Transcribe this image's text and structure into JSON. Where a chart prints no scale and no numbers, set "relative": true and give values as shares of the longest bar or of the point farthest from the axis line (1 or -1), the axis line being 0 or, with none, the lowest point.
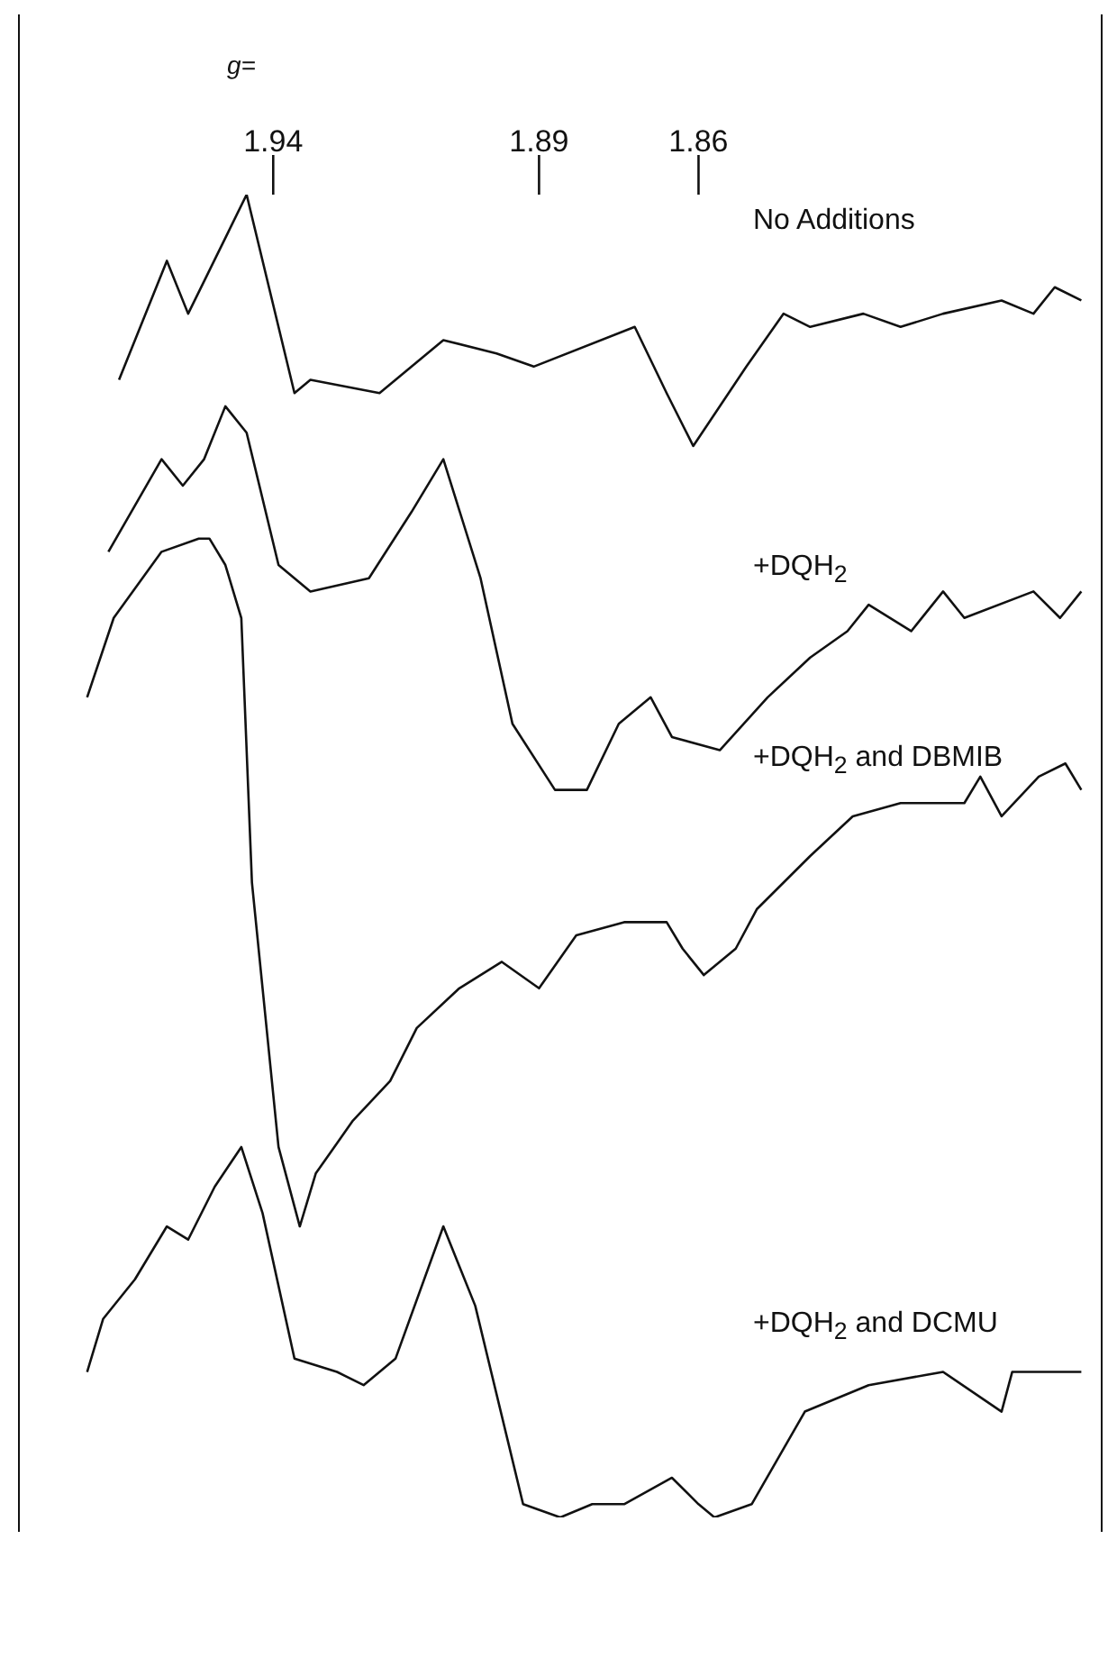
{
  "chart_data": {
    "type": "line",
    "relative": true,
    "xlabel": "g=",
    "xlim": [
      1.988,
      1.784
    ],
    "xticks": [
      1.94,
      1.89,
      1.86
    ],
    "grid": false,
    "marker": "none",
    "line_style": "solid",
    "series": [
      {
        "name": "No Additions",
        "color": "#111111",
        "x": [
          1.969,
          1.96,
          1.956,
          1.945,
          1.936,
          1.933,
          1.92,
          1.908,
          1.898,
          1.891,
          1.872,
          1.866,
          1.861,
          1.851,
          1.844,
          1.839,
          1.829,
          1.822,
          1.814,
          1.803,
          1.797,
          1.793,
          1.788
        ],
        "values": [
          0.86,
          0.95,
          0.91,
          1.0,
          0.85,
          0.86,
          0.85,
          0.89,
          0.88,
          0.87,
          0.9,
          0.85,
          0.81,
          0.87,
          0.91,
          0.9,
          0.91,
          0.9,
          0.91,
          0.92,
          0.91,
          0.93,
          0.92
        ]
      },
      {
        "name": "+DQH$_{2}$",
        "color": "#111111",
        "x": [
          1.971,
          1.961,
          1.957,
          1.953,
          1.949,
          1.945,
          1.939,
          1.933,
          1.922,
          1.914,
          1.908,
          1.901,
          1.895,
          1.887,
          1.881,
          1.875,
          1.869,
          1.865,
          1.856,
          1.847,
          1.839,
          1.832,
          1.828,
          1.82,
          1.814,
          1.81,
          1.797,
          1.792,
          1.788
        ],
        "values": [
          0.73,
          0.8,
          0.78,
          0.8,
          0.84,
          0.82,
          0.72,
          0.7,
          0.71,
          0.76,
          0.8,
          0.71,
          0.6,
          0.55,
          0.55,
          0.6,
          0.62,
          0.59,
          0.58,
          0.62,
          0.65,
          0.67,
          0.69,
          0.67,
          0.7,
          0.68,
          0.7,
          0.68,
          0.7
        ]
      },
      {
        "name": "+DQH$_{2}$ and DBMIB",
        "color": "#111111",
        "x": [
          1.975,
          1.97,
          1.961,
          1.954,
          1.952,
          1.949,
          1.946,
          1.944,
          1.942,
          1.939,
          1.935,
          1.932,
          1.925,
          1.918,
          1.913,
          1.905,
          1.897,
          1.89,
          1.883,
          1.874,
          1.866,
          1.863,
          1.859,
          1.853,
          1.849,
          1.839,
          1.831,
          1.822,
          1.81,
          1.807,
          1.803,
          1.796,
          1.791,
          1.788
        ],
        "values": [
          0.62,
          0.68,
          0.73,
          0.74,
          0.74,
          0.72,
          0.68,
          0.48,
          0.4,
          0.28,
          0.22,
          0.26,
          0.3,
          0.33,
          0.37,
          0.4,
          0.42,
          0.4,
          0.44,
          0.45,
          0.45,
          0.43,
          0.41,
          0.43,
          0.46,
          0.5,
          0.53,
          0.54,
          0.54,
          0.56,
          0.53,
          0.56,
          0.57,
          0.55
        ]
      },
      {
        "name": "+DQH$_{2}$ and DCMU",
        "color": "#111111",
        "x": [
          1.975,
          1.972,
          1.966,
          1.96,
          1.956,
          1.951,
          1.946,
          1.942,
          1.936,
          1.928,
          1.923,
          1.917,
          1.908,
          1.902,
          1.896,
          1.893,
          1.886,
          1.88,
          1.874,
          1.865,
          1.86,
          1.857,
          1.85,
          1.84,
          1.828,
          1.814,
          1.803,
          1.801,
          1.788
        ],
        "values": [
          0.11,
          0.15,
          0.18,
          0.22,
          0.21,
          0.25,
          0.28,
          0.23,
          0.12,
          0.11,
          0.1,
          0.12,
          0.22,
          0.16,
          0.06,
          0.01,
          0.0,
          0.01,
          0.01,
          0.03,
          0.01,
          0.0,
          0.01,
          0.08,
          0.1,
          0.11,
          0.08,
          0.11,
          0.11
        ]
      }
    ]
  }
}
